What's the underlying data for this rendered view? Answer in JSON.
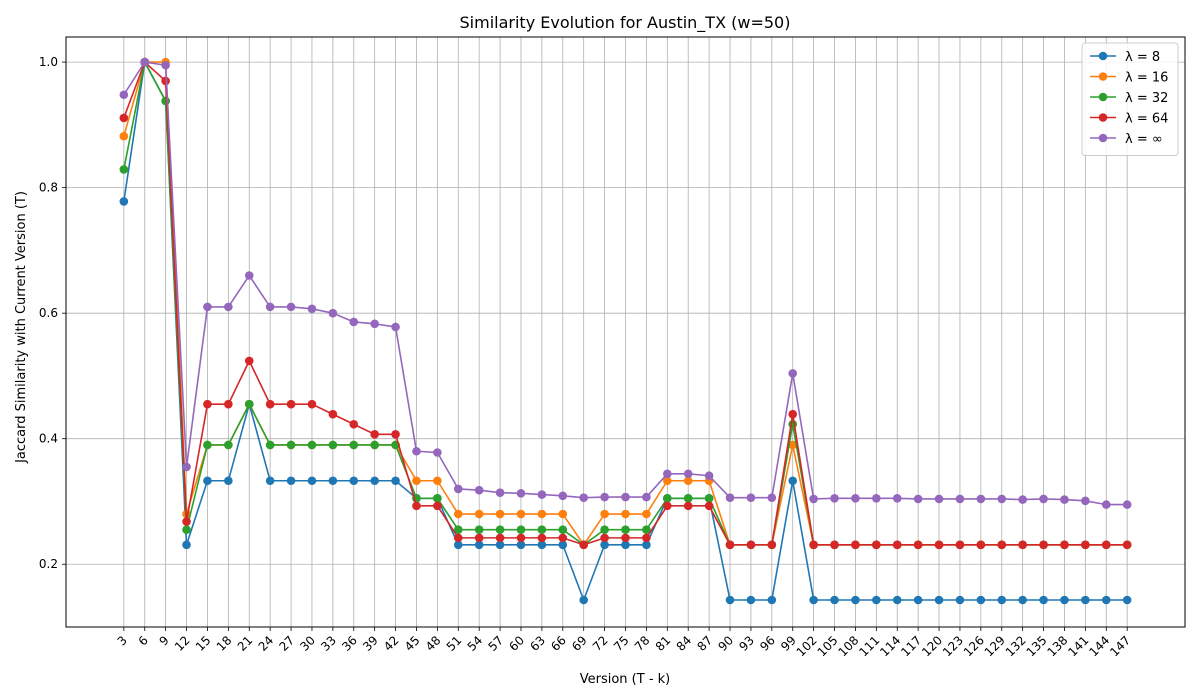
{
  "chart_data": {
    "type": "line",
    "title": "Similarity Evolution for Austin_TX (w=50)",
    "xlabel": "Version (T - k)",
    "ylabel": "Jaccard Similarity with Current Version (T)",
    "x": [
      3,
      6,
      9,
      12,
      15,
      18,
      21,
      24,
      27,
      30,
      33,
      36,
      39,
      42,
      45,
      48,
      51,
      54,
      57,
      60,
      63,
      66,
      69,
      72,
      75,
      78,
      81,
      84,
      87,
      90,
      93,
      96,
      99,
      102,
      105,
      108,
      111,
      114,
      117,
      120,
      123,
      126,
      129,
      132,
      135,
      138,
      141,
      144,
      147
    ],
    "yticks": [
      "0.2",
      "0.4",
      "0.6",
      "0.8",
      "1.0"
    ],
    "ylim": [
      0.1,
      1.04
    ],
    "grid": true,
    "legend_position": "top-right",
    "series": [
      {
        "name": "λ = 8",
        "color": "#1f77b4",
        "values": [
          0.778,
          1.0,
          0.938,
          0.231,
          0.333,
          0.333,
          0.455,
          0.333,
          0.333,
          0.333,
          0.333,
          0.333,
          0.333,
          0.333,
          0.305,
          0.305,
          0.231,
          0.231,
          0.231,
          0.231,
          0.231,
          0.231,
          0.143,
          0.231,
          0.231,
          0.231,
          0.305,
          0.305,
          0.305,
          0.143,
          0.143,
          0.143,
          0.333,
          0.143,
          0.143,
          0.143,
          0.143,
          0.143,
          0.143,
          0.143,
          0.143,
          0.143,
          0.143,
          0.143,
          0.143,
          0.143,
          0.143,
          0.143,
          0.143
        ]
      },
      {
        "name": "λ = 16",
        "color": "#ff7f0e",
        "values": [
          0.882,
          1.0,
          1.0,
          0.28,
          0.39,
          0.39,
          0.455,
          0.39,
          0.39,
          0.39,
          0.39,
          0.39,
          0.39,
          0.39,
          0.333,
          0.333,
          0.28,
          0.28,
          0.28,
          0.28,
          0.28,
          0.28,
          0.231,
          0.28,
          0.28,
          0.28,
          0.333,
          0.333,
          0.333,
          0.231,
          0.231,
          0.231,
          0.39,
          0.231,
          0.231,
          0.231,
          0.231,
          0.231,
          0.231,
          0.231,
          0.231,
          0.231,
          0.231,
          0.231,
          0.231,
          0.231,
          0.231,
          0.231,
          0.231
        ]
      },
      {
        "name": "λ = 32",
        "color": "#2ca02c",
        "values": [
          0.829,
          1.0,
          0.938,
          0.255,
          0.39,
          0.39,
          0.455,
          0.39,
          0.39,
          0.39,
          0.39,
          0.39,
          0.39,
          0.39,
          0.305,
          0.305,
          0.255,
          0.255,
          0.255,
          0.255,
          0.255,
          0.255,
          0.231,
          0.255,
          0.255,
          0.255,
          0.305,
          0.305,
          0.305,
          0.231,
          0.231,
          0.231,
          0.423,
          0.231,
          0.231,
          0.231,
          0.231,
          0.231,
          0.231,
          0.231,
          0.231,
          0.231,
          0.231,
          0.231,
          0.231,
          0.231,
          0.231,
          0.231,
          0.231
        ]
      },
      {
        "name": "λ = 64",
        "color": "#d62728",
        "values": [
          0.911,
          1.0,
          0.97,
          0.268,
          0.455,
          0.455,
          0.524,
          0.455,
          0.455,
          0.455,
          0.439,
          0.423,
          0.407,
          0.407,
          0.293,
          0.293,
          0.242,
          0.242,
          0.242,
          0.242,
          0.242,
          0.242,
          0.231,
          0.242,
          0.242,
          0.242,
          0.293,
          0.293,
          0.293,
          0.231,
          0.231,
          0.231,
          0.439,
          0.231,
          0.231,
          0.231,
          0.231,
          0.231,
          0.231,
          0.231,
          0.231,
          0.231,
          0.231,
          0.231,
          0.231,
          0.231,
          0.231,
          0.231,
          0.231
        ]
      },
      {
        "name": "λ = ∞",
        "color": "#9467bd",
        "values": [
          0.948,
          1.0,
          0.995,
          0.355,
          0.61,
          0.61,
          0.66,
          0.61,
          0.61,
          0.607,
          0.6,
          0.586,
          0.583,
          0.578,
          0.38,
          0.378,
          0.32,
          0.318,
          0.314,
          0.313,
          0.311,
          0.309,
          0.306,
          0.307,
          0.307,
          0.307,
          0.344,
          0.344,
          0.341,
          0.306,
          0.306,
          0.306,
          0.504,
          0.304,
          0.305,
          0.305,
          0.305,
          0.305,
          0.304,
          0.304,
          0.304,
          0.304,
          0.304,
          0.303,
          0.304,
          0.303,
          0.301,
          0.295,
          0.295
        ]
      }
    ]
  }
}
